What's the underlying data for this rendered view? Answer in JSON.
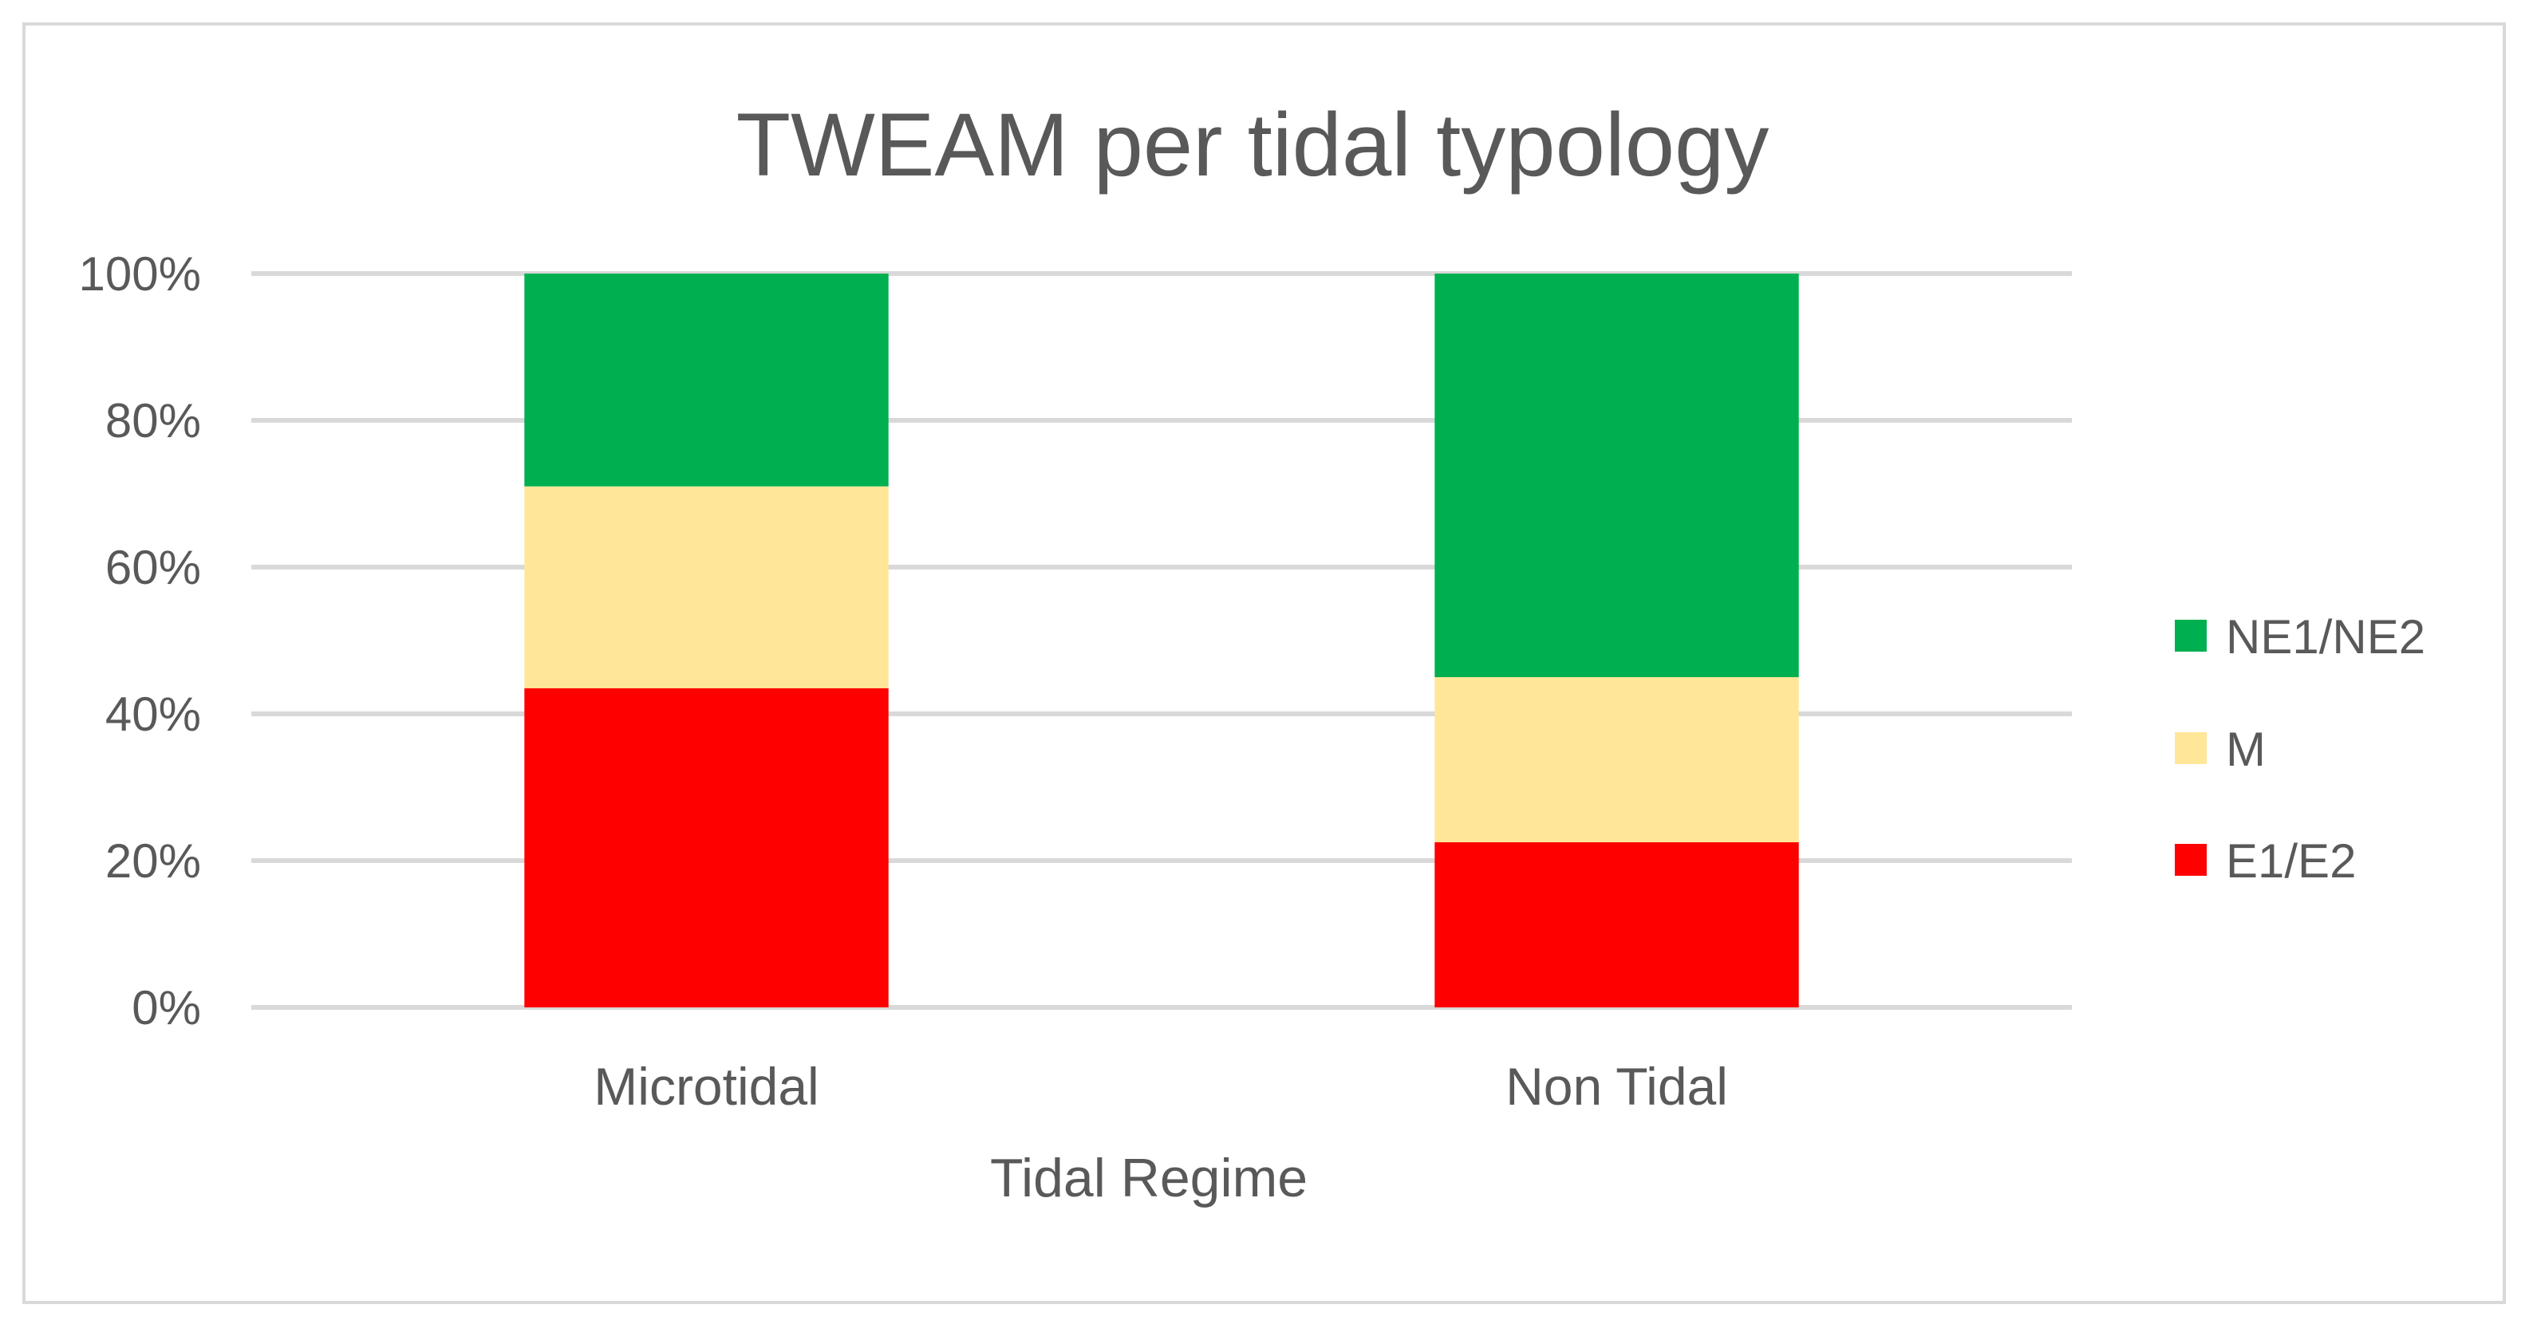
{
  "chart_data": {
    "type": "bar",
    "stacked": true,
    "percent": true,
    "title": "TWEAM per tidal typology",
    "xlabel": "Tidal Regime",
    "ylabel": "",
    "ylim": [
      0,
      100
    ],
    "yticks": [
      "0%",
      "20%",
      "40%",
      "60%",
      "80%",
      "100%"
    ],
    "categories": [
      "Microtidal",
      "Non Tidal"
    ],
    "series": [
      {
        "name": "E1/E2",
        "color": "#ff0000",
        "values": [
          43.5,
          22.5
        ]
      },
      {
        "name": "M",
        "color": "#ffe699",
        "values": [
          27.5,
          22.5
        ]
      },
      {
        "name": "NE1/NE2",
        "color": "#00b050",
        "values": [
          29,
          55
        ]
      }
    ],
    "legend_order": [
      "NE1/NE2",
      "M",
      "E1/E2"
    ],
    "legend_position": "right",
    "grid": true
  }
}
